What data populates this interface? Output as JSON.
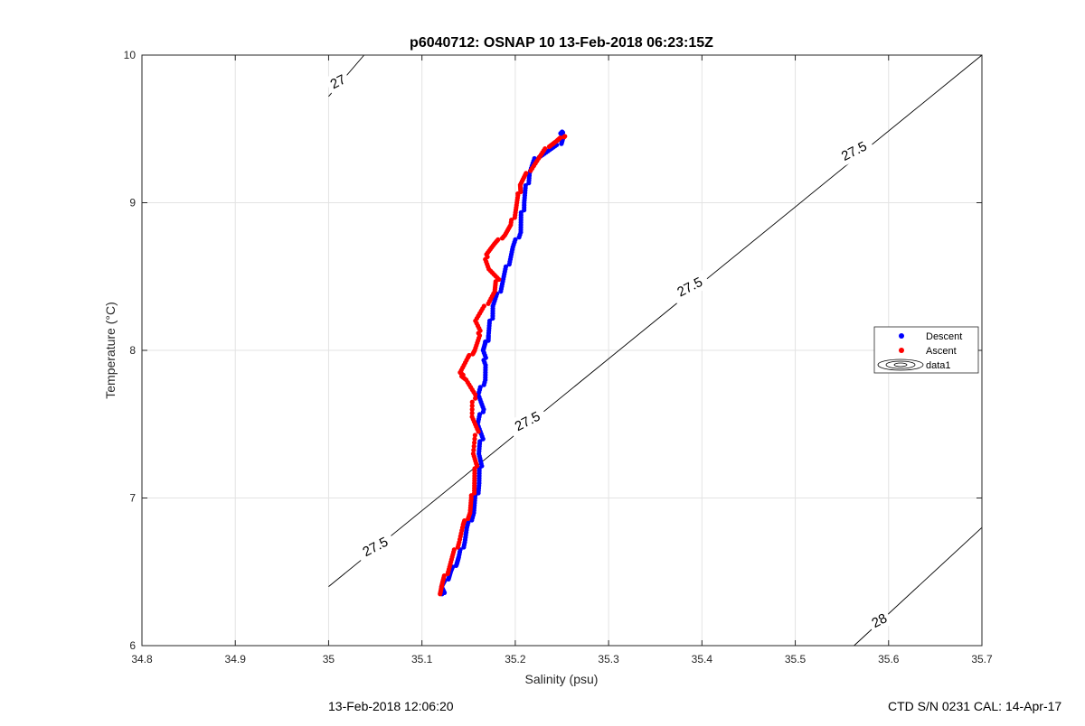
{
  "chart_data": {
    "type": "scatter",
    "title": "p6040712: OSNAP 10 13-Feb-2018 06:23:15Z",
    "xlabel": "Salinity (psu)",
    "ylabel": "Temperature (°C)",
    "xlim": [
      34.8,
      35.7
    ],
    "ylim": [
      6,
      10
    ],
    "xticks": [
      "34.8",
      "34.9",
      "35",
      "35.1",
      "35.2",
      "35.3",
      "35.4",
      "35.5",
      "35.6",
      "35.7"
    ],
    "yticks": [
      "6",
      "7",
      "8",
      "9",
      "10"
    ],
    "grid": true,
    "legend_position": "right",
    "series": [
      {
        "name": "Descent",
        "color": "#0000ff",
        "points": [
          [
            35.123,
            6.35
          ],
          [
            35.121,
            6.4
          ],
          [
            35.127,
            6.45
          ],
          [
            35.131,
            6.5
          ],
          [
            35.136,
            6.55
          ],
          [
            35.14,
            6.6
          ],
          [
            35.145,
            6.7
          ],
          [
            35.149,
            6.8
          ],
          [
            35.155,
            6.9
          ],
          [
            35.158,
            7.0
          ],
          [
            35.161,
            7.1
          ],
          [
            35.163,
            7.2
          ],
          [
            35.161,
            7.3
          ],
          [
            35.164,
            7.4
          ],
          [
            35.16,
            7.5
          ],
          [
            35.165,
            7.6
          ],
          [
            35.161,
            7.7
          ],
          [
            35.167,
            7.8
          ],
          [
            35.169,
            7.9
          ],
          [
            35.165,
            8.0
          ],
          [
            35.169,
            8.05
          ],
          [
            35.171,
            8.1
          ],
          [
            35.174,
            8.2
          ],
          [
            35.176,
            8.3
          ],
          [
            35.183,
            8.4
          ],
          [
            35.188,
            8.5
          ],
          [
            35.193,
            8.6
          ],
          [
            35.198,
            8.7
          ],
          [
            35.205,
            8.8
          ],
          [
            35.207,
            8.9
          ],
          [
            35.209,
            9.0
          ],
          [
            35.212,
            9.1
          ],
          [
            35.215,
            9.2
          ],
          [
            35.222,
            9.3
          ],
          [
            35.235,
            9.35
          ],
          [
            35.248,
            9.4
          ],
          [
            35.252,
            9.45
          ],
          [
            35.249,
            9.48
          ]
        ]
      },
      {
        "name": "Ascent",
        "color": "#ff0000",
        "points": [
          [
            35.118,
            6.35
          ],
          [
            35.122,
            6.42
          ],
          [
            35.127,
            6.5
          ],
          [
            35.133,
            6.6
          ],
          [
            35.139,
            6.7
          ],
          [
            35.145,
            6.82
          ],
          [
            35.151,
            6.9
          ],
          [
            35.154,
            7.0
          ],
          [
            35.156,
            7.1
          ],
          [
            35.158,
            7.2
          ],
          [
            35.155,
            7.3
          ],
          [
            35.159,
            7.45
          ],
          [
            35.154,
            7.55
          ],
          [
            35.156,
            7.7
          ],
          [
            35.148,
            7.8
          ],
          [
            35.14,
            7.85
          ],
          [
            35.15,
            7.95
          ],
          [
            35.156,
            8.0
          ],
          [
            35.163,
            8.1
          ],
          [
            35.157,
            8.2
          ],
          [
            35.168,
            8.3
          ],
          [
            35.178,
            8.4
          ],
          [
            35.181,
            8.48
          ],
          [
            35.172,
            8.55
          ],
          [
            35.168,
            8.65
          ],
          [
            35.178,
            8.72
          ],
          [
            35.188,
            8.78
          ],
          [
            35.196,
            8.85
          ],
          [
            35.2,
            8.95
          ],
          [
            35.204,
            9.05
          ],
          [
            35.205,
            9.12
          ],
          [
            35.213,
            9.2
          ],
          [
            35.225,
            9.3
          ],
          [
            35.235,
            9.38
          ],
          [
            35.245,
            9.42
          ],
          [
            35.252,
            9.45
          ]
        ]
      }
    ],
    "contours": [
      {
        "label": "27",
        "points": [
          [
            35.0,
            9.72
          ],
          [
            35.038,
            10.0
          ]
        ]
      },
      {
        "label": "27.5",
        "points": [
          [
            35.0,
            6.4
          ],
          [
            35.7,
            10.0
          ]
        ]
      },
      {
        "label": "28",
        "points": [
          [
            35.563,
            6.0
          ],
          [
            35.7,
            6.8
          ]
        ]
      }
    ],
    "contour_labels": [
      {
        "text": "27",
        "at": [
          35.01,
          9.82
        ]
      },
      {
        "text": "27.5",
        "at": [
          35.05,
          6.67
        ]
      },
      {
        "text": "27.5",
        "at": [
          35.213,
          7.52
        ]
      },
      {
        "text": "27.5",
        "at": [
          35.387,
          8.43
        ]
      },
      {
        "text": "27.5",
        "at": [
          35.563,
          9.35
        ]
      },
      {
        "text": "28",
        "at": [
          35.59,
          6.17
        ]
      }
    ],
    "legend": [
      "Descent",
      "Ascent",
      "data1"
    ]
  },
  "footer": {
    "left_text": "13-Feb-2018 12:06:20",
    "right_text": "CTD S/N 0231  CAL: 14-Apr-17"
  }
}
